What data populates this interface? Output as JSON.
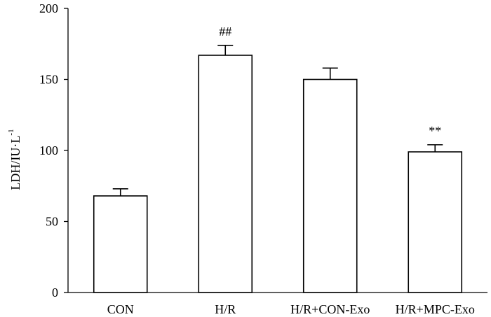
{
  "chart_data": {
    "type": "bar",
    "categories": [
      "CON",
      "H/R",
      "H/R+CON-Exo",
      "H/R+MPC-Exo"
    ],
    "values": [
      68,
      167,
      150,
      99
    ],
    "error_upper": [
      5,
      7,
      8,
      5
    ],
    "annotations": [
      "",
      "##",
      "",
      "**"
    ],
    "ylabel": "LDH/IU·L",
    "ylabel_superscript": "-1",
    "ylim": [
      0,
      200
    ],
    "yticks": [
      0,
      50,
      100,
      150,
      200
    ],
    "ytick_labels": [
      "0",
      "50",
      "100",
      "150",
      "200"
    ],
    "grid": false,
    "bar_fill": "#ffffff",
    "bar_stroke": "#000000"
  }
}
